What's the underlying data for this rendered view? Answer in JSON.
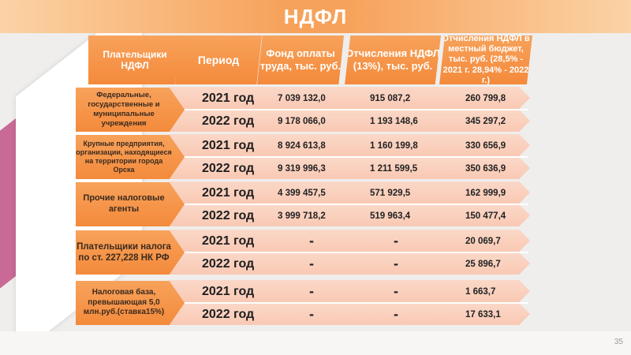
{
  "title": "НДФЛ",
  "headers": {
    "payers": "Плательщики НДФЛ",
    "period": "Период",
    "fund": "Фонд оплаты труда, тыс. руб.",
    "deductions": "Отчисления НДФЛ (13%), тыс. руб.",
    "local": "Отчисления НДФЛ в местный бюджет, тыс. руб. (28,5% - 2021 г. 28,94% - 2022 г.)"
  },
  "groups": [
    {
      "category": "Федеральные, государственные и муниципальные учреждения",
      "rows": [
        {
          "year": "2021 год",
          "fund": "7 039 132,0",
          "ndfl": "915 087,2",
          "local": "260 799,8"
        },
        {
          "year": "2022 год",
          "fund": "9 178 066,0",
          "ndfl": "1 193 148,6",
          "local": "345 297,2"
        }
      ]
    },
    {
      "category": "Крупные предприятия, организации, находящиеся на территории города Орска",
      "rows": [
        {
          "year": "2021 год",
          "fund": "8 924 613,8",
          "ndfl": "1 160 199,8",
          "local": "330 656,9"
        },
        {
          "year": "2022 год",
          "fund": "9 319 996,3",
          "ndfl": "1 211 599,5",
          "local": "350 636,9"
        }
      ]
    },
    {
      "category": "Прочие налоговые агенты",
      "rows": [
        {
          "year": "2021 год",
          "fund": "4 399 457,5",
          "ndfl": "571 929,5",
          "local": "162 999,9"
        },
        {
          "year": "2022 год",
          "fund": "3 999 718,2",
          "ndfl": "519 963,4",
          "local": "150 477,4"
        }
      ]
    },
    {
      "category": "Плательщики налога по ст. 227,228 НК РФ",
      "rows": [
        {
          "year": "2021 год",
          "fund": "-",
          "ndfl": "-",
          "local": "20 069,7"
        },
        {
          "year": "2022 год",
          "fund": "-",
          "ndfl": "-",
          "local": "25 896,7"
        }
      ]
    },
    {
      "category": "Налоговая база, превышающая 5,0 млн.руб.(ставка15%)",
      "rows": [
        {
          "year": "2021 год",
          "fund": "-",
          "ndfl": "-",
          "local": "1 663,7"
        },
        {
          "year": "2022 год",
          "fund": "-",
          "ndfl": "-",
          "local": "17 633,1"
        }
      ]
    }
  ],
  "page_number": "35",
  "colors": {
    "accent": "#f48a3b",
    "row": "#f9c9b4",
    "header_bg": "#f7a25b",
    "deco": "#c45b8c"
  }
}
